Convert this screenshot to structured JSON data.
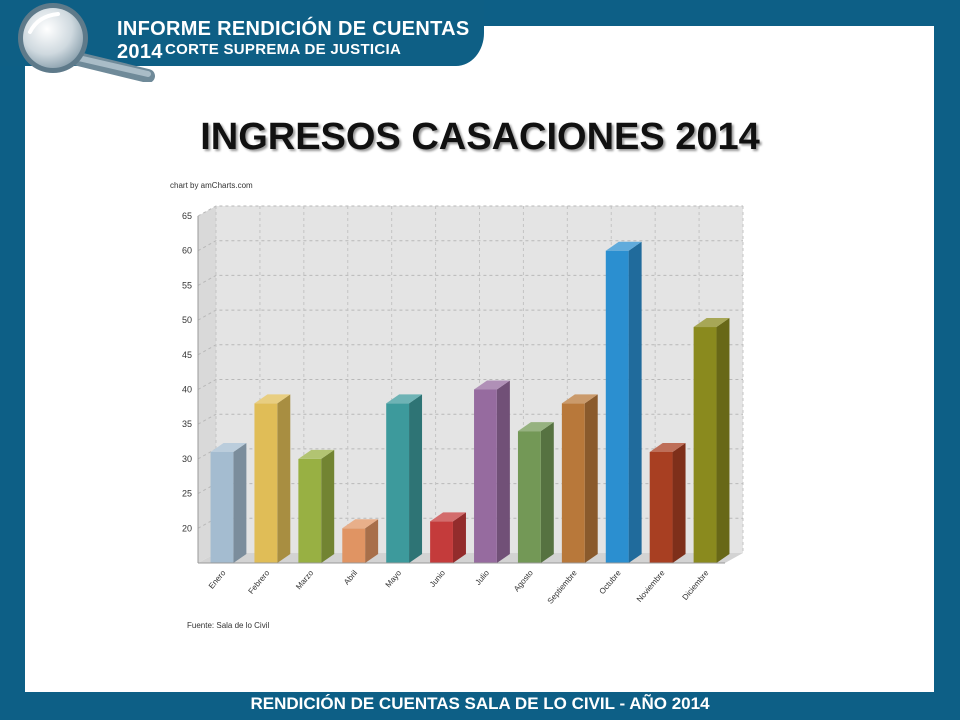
{
  "header": {
    "title": "INFORME RENDICIÓN DE CUENTAS 2014",
    "subtitle": "CORTE SUPREMA DE JUSTICIA"
  },
  "slide": {
    "title": "INGRESOS CASACIONES 2014",
    "footer": "RENDICIÓN DE CUENTAS SALA DE LO CIVIL - AÑO 2014"
  },
  "chart_data": {
    "type": "bar",
    "credit": "chart by amCharts.com",
    "source": "Fuente: Sala de lo Civil",
    "categories": [
      "Enero",
      "Febrero",
      "Marzo",
      "Abril",
      "Mayo",
      "Junio",
      "Julio",
      "Agosto",
      "Septiembre",
      "Octubre",
      "Noviembre",
      "Diciembre"
    ],
    "values": [
      31,
      38,
      30,
      20,
      38,
      21,
      40,
      34,
      38,
      60,
      31,
      49
    ],
    "colors": [
      "#a4bcd0",
      "#e0bd57",
      "#98b043",
      "#e09463",
      "#3d9a9c",
      "#c43b3b",
      "#966b9f",
      "#739856",
      "#b8783a",
      "#2b8fd0",
      "#a83f22",
      "#8a8a1e"
    ],
    "yticks": [
      20,
      25,
      30,
      35,
      40,
      45,
      50,
      55,
      60,
      65
    ],
    "ylim": [
      15,
      65
    ],
    "grid": true
  }
}
